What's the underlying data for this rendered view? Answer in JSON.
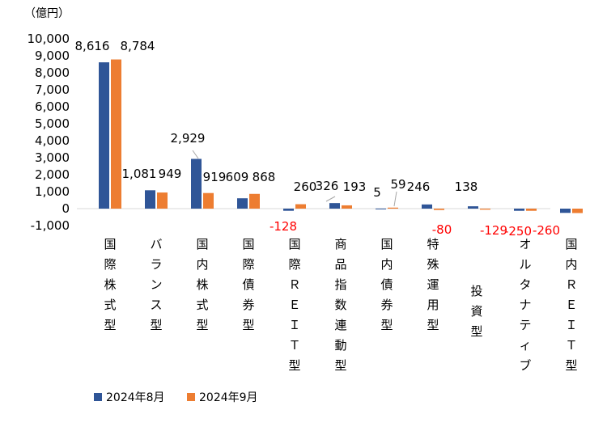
{
  "chart_data": {
    "type": "bar",
    "unit_label": "（億円）",
    "title": "",
    "xlabel": "",
    "ylabel": "",
    "ylim": [
      -1000,
      10000
    ],
    "yticks": [
      "10,000",
      "9,000",
      "8,000",
      "7,000",
      "6,000",
      "5,000",
      "4,000",
      "3,000",
      "2,000",
      "1,000",
      "0",
      "-1,000"
    ],
    "legend_position": "bottom-left",
    "categories": [
      "国際株式型",
      "バランス型",
      "国内株式型",
      "国際債券型",
      "国際ＲＥＩＴ型",
      "商品指数連動型",
      "国内債券型",
      "特殊運用型",
      "投資型",
      "オルタナティブ",
      "国内ＲＥＩＴ型"
    ],
    "series": [
      {
        "name": "2024年8月",
        "color": "#2F5597",
        "values": [
          8616,
          1081,
          2929,
          609,
          -128,
          326,
          5,
          246,
          138,
          -129,
          -250
        ],
        "labels": [
          "8,616",
          "1,081",
          "2,929",
          "609",
          "-128",
          "326",
          "5",
          "246",
          "138",
          "-129",
          "-250"
        ]
      },
      {
        "name": "2024年9月",
        "color": "#ED7D31",
        "values": [
          8784,
          949,
          919,
          868,
          260,
          193,
          59,
          -80,
          -60,
          -129,
          -260
        ],
        "labels": [
          "8,784",
          "949",
          "919",
          "868",
          "260",
          "193",
          "59",
          "-80",
          "",
          "",
          "-260"
        ]
      }
    ]
  }
}
